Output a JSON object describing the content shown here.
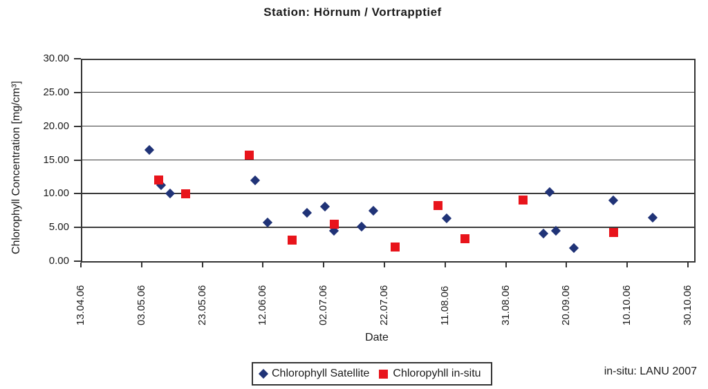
{
  "title": "Station: Hörnum / Vortrapptief",
  "footnote": "in-situ: LANU 2007",
  "chart_data": {
    "type": "scatter",
    "title": "Station: Hörnum / Vortrapptief",
    "xlabel": "Date",
    "ylabel": "Chlorophyll Concentration [mg/cm³]",
    "ylim": [
      0,
      30
    ],
    "y_tick_step": 5,
    "y_tick_labels": [
      "30.00",
      "25.00",
      "20.00",
      "15.00",
      "10.00",
      "5.00",
      "0.00"
    ],
    "x_tick_labels": [
      "13.04.06",
      "03.05.06",
      "23.05.06",
      "12.06.06",
      "02.07.06",
      "22.07.06",
      "11.08.06",
      "31.08.06",
      "20.09.06",
      "10.10.06",
      "30.10.06"
    ],
    "x_tick_interval_days": 20,
    "x_range_days": 200,
    "grid": "horizontal",
    "legend_position": "bottom-center",
    "colors": {
      "satellite": "#203377",
      "insitu": "#e8141b",
      "axis": "#333333",
      "grid": "#3a3a3a",
      "text": "#1a1a1a"
    },
    "series": [
      {
        "name": "Chlorophyll Satellite",
        "marker": "diamond",
        "color_key": "satellite",
        "points": [
          {
            "date": "05.05.06",
            "value": 16.5
          },
          {
            "date": "09.05.06",
            "value": 11.3
          },
          {
            "date": "12.05.06",
            "value": 10.0
          },
          {
            "date": "09.06.06",
            "value": 12.0
          },
          {
            "date": "13.06.06",
            "value": 5.7
          },
          {
            "date": "26.06.06",
            "value": 7.2
          },
          {
            "date": "02.07.06",
            "value": 8.1
          },
          {
            "date": "05.07.06",
            "value": 4.5
          },
          {
            "date": "14.07.06",
            "value": 5.1
          },
          {
            "date": "18.07.06",
            "value": 7.5
          },
          {
            "date": "11.08.06",
            "value": 6.3
          },
          {
            "date": "12.09.06",
            "value": 4.1
          },
          {
            "date": "14.09.06",
            "value": 10.2
          },
          {
            "date": "16.09.06",
            "value": 4.5
          },
          {
            "date": "22.09.06",
            "value": 1.9
          },
          {
            "date": "05.10.06",
            "value": 9.0
          },
          {
            "date": "18.10.06",
            "value": 6.5
          }
        ]
      },
      {
        "name": "Chloropyhll in-situ",
        "marker": "square",
        "color_key": "insitu",
        "points": [
          {
            "date": "08.05.06",
            "value": 12.1
          },
          {
            "date": "17.05.06",
            "value": 10.0
          },
          {
            "date": "07.06.06",
            "value": 15.8
          },
          {
            "date": "21.06.06",
            "value": 3.2
          },
          {
            "date": "05.07.06",
            "value": 5.5
          },
          {
            "date": "25.07.06",
            "value": 2.1
          },
          {
            "date": "08.08.06",
            "value": 8.3
          },
          {
            "date": "17.08.06",
            "value": 3.4
          },
          {
            "date": "05.09.06",
            "value": 9.1
          },
          {
            "date": "05.10.06",
            "value": 4.3
          }
        ]
      }
    ]
  }
}
